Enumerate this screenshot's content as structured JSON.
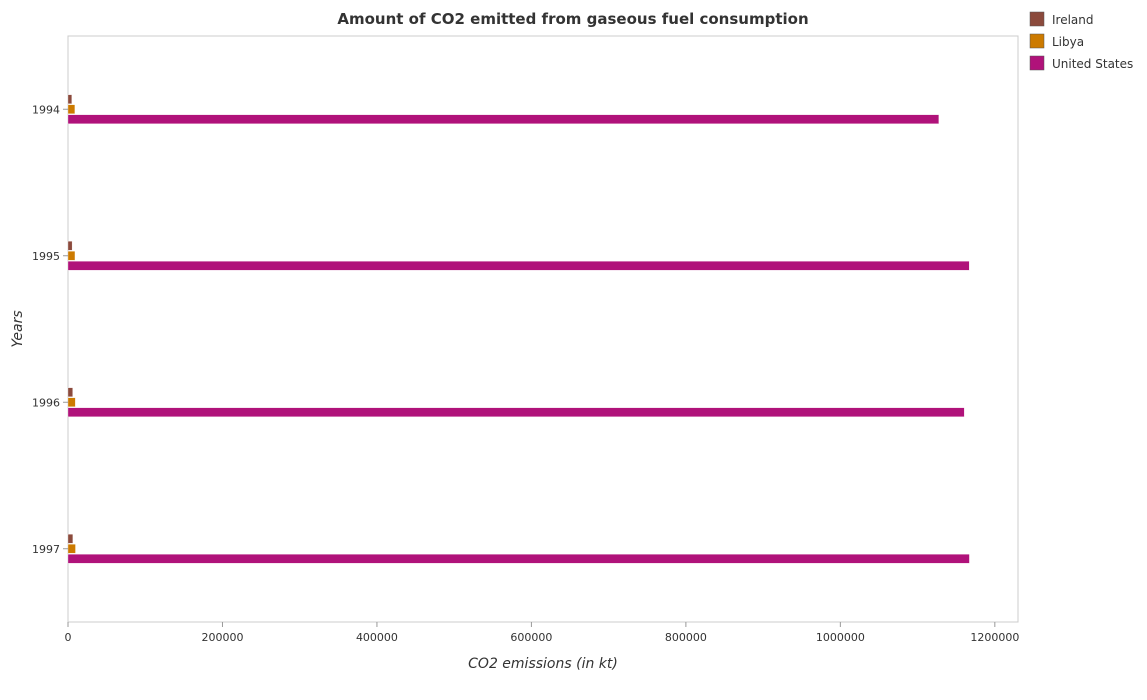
{
  "chart_data": {
    "type": "bar",
    "orientation": "horizontal",
    "title": "Amount of CO2 emitted from gaseous fuel consumption",
    "xlabel": "CO2 emissions (in kt)",
    "ylabel": "Years",
    "categories": [
      "1994",
      "1995",
      "1996",
      "1997"
    ],
    "xlim": [
      0,
      1230000
    ],
    "xticks": [
      0,
      200000,
      400000,
      600000,
      800000,
      1000000,
      1200000
    ],
    "xtick_labels": [
      "0",
      "200000",
      "400000",
      "600000",
      "800000",
      "1000000",
      "1200000"
    ],
    "grid": false,
    "legend_position": "top-right",
    "series": [
      {
        "name": "Ireland",
        "color": "#8B4A3C",
        "values": [
          4900,
          5300,
          6000,
          6300
        ]
      },
      {
        "name": "Libya",
        "color": "#CC7A00",
        "values": [
          8900,
          9000,
          9500,
          9700
        ]
      },
      {
        "name": "United States",
        "color": "#B0127A",
        "values": [
          1127500,
          1166800,
          1160400,
          1167100
        ]
      }
    ]
  }
}
